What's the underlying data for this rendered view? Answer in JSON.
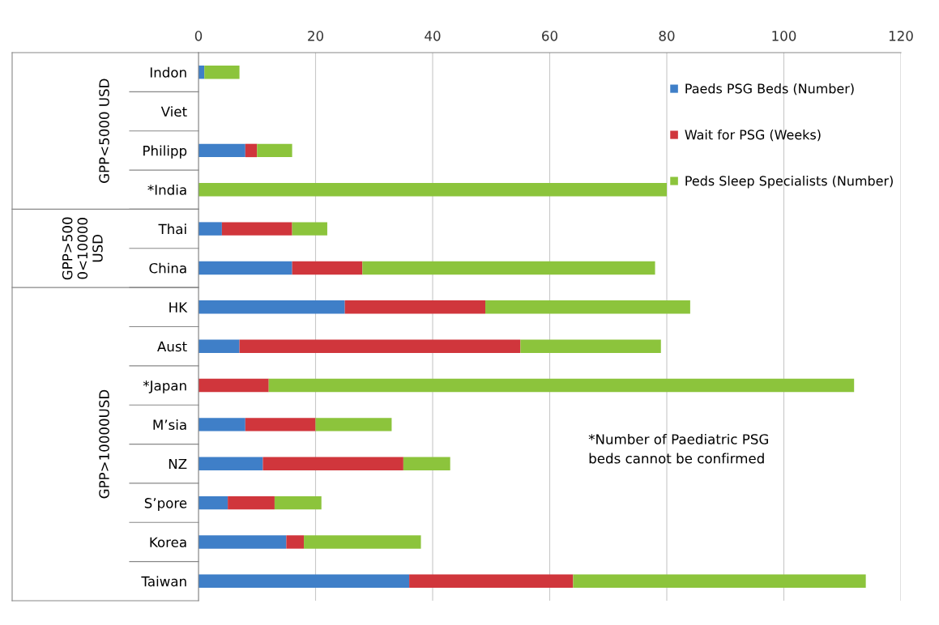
{
  "chart_data": {
    "type": "bar",
    "orientation": "horizontal",
    "stacked": true,
    "categories": [
      "Indon",
      "Viet",
      "Philipp",
      "*India",
      "Thai",
      "China",
      "HK",
      "Aust",
      "*Japan",
      "M’sia",
      "NZ",
      "S’pore",
      "Korea",
      "Taiwan"
    ],
    "series": [
      {
        "name": "Paeds PSG Beds (Number)",
        "color": "#3f7fc8",
        "values": [
          1,
          0,
          8,
          0,
          4,
          16,
          25,
          7,
          0,
          8,
          11,
          5,
          15,
          36
        ]
      },
      {
        "name": "Wait for PSG (Weeks)",
        "color": "#d0363c",
        "values": [
          0,
          0,
          2,
          0,
          12,
          12,
          24,
          48,
          12,
          12,
          24,
          8,
          3,
          28
        ]
      },
      {
        "name": "Peds Sleep Specialists (Number)",
        "color": "#8cc43c",
        "values": [
          6,
          0,
          6,
          80,
          6,
          50,
          35,
          24,
          100,
          13,
          8,
          8,
          20,
          50
        ]
      }
    ],
    "xlim": [
      0,
      120
    ],
    "xticks": [
      0,
      20,
      40,
      60,
      80,
      100,
      120
    ],
    "grid": "x",
    "legend": "top right",
    "annotations": [
      "GPP<5000 USD",
      "GPP>500\n0<10000\nUSD",
      "GPP>10000USD",
      "*Number of Paediatric PSG\nbeds cannot be confirmed"
    ]
  }
}
